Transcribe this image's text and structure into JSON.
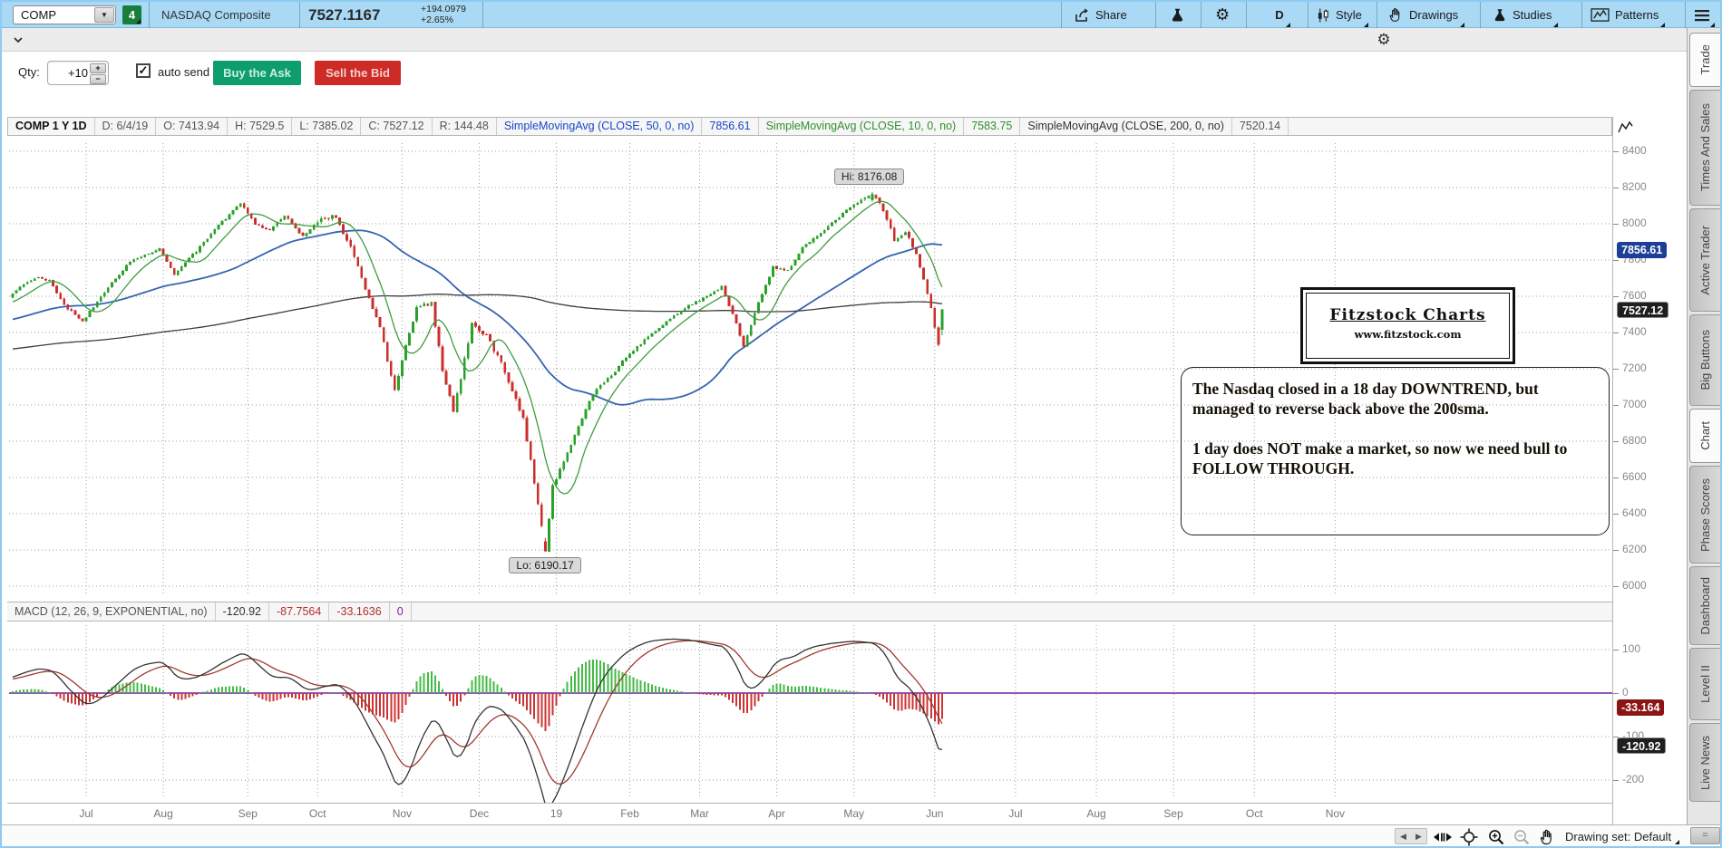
{
  "top_bar": {
    "symbol": "COMP",
    "watchlist_badge": "4",
    "symbol_description": "NASDAQ Composite",
    "last_price": "7527.1167",
    "change": "+194.0979",
    "change_percent": "+2.65%",
    "share_label": "Share",
    "timeframe_label": "D",
    "style_label": "Style",
    "drawings_label": "Drawings",
    "studies_label": "Studies",
    "patterns_label": "Patterns"
  },
  "order_bar": {
    "qty_label": "Qty:",
    "qty_value": "+10",
    "auto_send_label": "auto send",
    "buy_label": "Buy the Ask",
    "sell_label": "Sell the Bid",
    "check_glyph": "✓"
  },
  "chart_header": {
    "title": "COMP 1 Y 1D",
    "date": "D: 6/4/19",
    "open": "O: 7413.94",
    "high": "H: 7529.5",
    "low": "L: 7385.02",
    "close": "C: 7527.12",
    "range": "R: 144.48",
    "sma50_label": "SimpleMovingAvg (CLOSE, 50, 0, no)",
    "sma50_value": "7856.61",
    "sma10_label": "SimpleMovingAvg (CLOSE, 10, 0, no)",
    "sma10_value": "7583.75",
    "sma200_label": "SimpleMovingAvg (CLOSE, 200, 0, no)",
    "sma200_value": "7520.14"
  },
  "macd_header": {
    "label": "MACD (12, 26, 9, EXPONENTIAL, no)",
    "value": "-120.92",
    "avg": "-87.7564",
    "diff": "-33.1636",
    "zero": "0"
  },
  "annotations": {
    "hi_label": "Hi: 8176.08",
    "lo_label": "Lo: 6190.17",
    "logo_title": "Fitzstock Charts",
    "logo_url": "www.fitzstock.com",
    "note_para1": "The Nasdaq closed in a 18 day DOWNTREND, but managed to reverse back above the 200sma.",
    "note_para2": "1 day does NOT make a market, so now we need bull to FOLLOW THROUGH."
  },
  "price_axis": {
    "labels": [
      8400,
      8200,
      8000,
      7800,
      7600,
      7400,
      7200,
      7000,
      6800,
      6600,
      6400,
      6200,
      6000
    ],
    "bubble_sma50": "7856.61",
    "bubble_last": "7527.12"
  },
  "macd_axis": {
    "labels": [
      100,
      0,
      -100,
      -200
    ],
    "bubble_diff": "-33.164",
    "bubble_value": "-120.92"
  },
  "x_axis": {
    "ticks": [
      {
        "bar": 20,
        "label": "Jul"
      },
      {
        "bar": 41,
        "label": "Aug"
      },
      {
        "bar": 64,
        "label": "Sep"
      },
      {
        "bar": 83,
        "label": "Oct"
      },
      {
        "bar": 106,
        "label": "Nov"
      },
      {
        "bar": 127,
        "label": "Dec"
      },
      {
        "bar": 148,
        "label": "19"
      },
      {
        "bar": 168,
        "label": "Feb"
      },
      {
        "bar": 187,
        "label": "Mar"
      },
      {
        "bar": 208,
        "label": "Apr"
      },
      {
        "bar": 229,
        "label": "May"
      },
      {
        "bar": 251,
        "label": "Jun"
      },
      {
        "bar": 273,
        "label": "Jul"
      },
      {
        "bar": 295,
        "label": "Aug"
      },
      {
        "bar": 316,
        "label": "Sep"
      },
      {
        "bar": 338,
        "label": "Oct"
      },
      {
        "bar": 360,
        "label": "Nov"
      }
    ]
  },
  "sidebar": {
    "tabs": [
      {
        "label": "Trade",
        "active": true
      },
      {
        "label": "Times And Sales",
        "active": false
      },
      {
        "label": "Active Trader",
        "active": false
      },
      {
        "label": "Big Buttons",
        "active": false
      },
      {
        "label": "Chart",
        "active": true
      },
      {
        "label": "Phase Scores",
        "active": false
      },
      {
        "label": "Dashboard",
        "active": false
      },
      {
        "label": "Level II",
        "active": false
      },
      {
        "label": "Live News",
        "active": false
      }
    ]
  },
  "bottom_bar": {
    "drawing_set_label": "Drawing set: Default"
  },
  "colors": {
    "candle_up": "#2aa22a",
    "candle_down": "#c9302c",
    "sma10": "#3f9c3f",
    "sma50": "#3465b0",
    "sma200": "#3c3c3c",
    "macd_value_line": "#333333",
    "macd_avg_line": "#a0392e",
    "hist_pos": "#44bb44",
    "hist_neg": "#cc3333",
    "zero_line": "#6b21a8",
    "bubble_blue": "#1d3f96",
    "bubble_dark": "#1f1f1f",
    "bubble_red": "#8b1414",
    "grid": "#9e9e9e"
  },
  "chart_data": {
    "type": "candlestick",
    "symbol": "COMP",
    "timeframe": "1 Y 1D",
    "y_axis_range": [
      6000,
      8400
    ],
    "y_axis_step": 200,
    "macd_axis_range": [
      -250,
      140
    ],
    "last_date": "6/4/19",
    "last_candle": {
      "o": 7413.94,
      "h": 7529.5,
      "l": 7385.02,
      "c": 7527.12
    },
    "extremes": {
      "hi_bar": 234,
      "hi_value": 8176.08,
      "lo_bar": 145,
      "lo_value": 6190.17
    },
    "first_bar": -200,
    "last_bar": 253,
    "pre_path": [
      [
        -200,
        7150
      ],
      [
        -150,
        7300
      ],
      [
        -110,
        7180
      ],
      [
        -60,
        7360
      ],
      [
        -20,
        7470
      ],
      [
        -1,
        7590
      ]
    ],
    "price_path": [
      [
        0,
        7620
      ],
      [
        6,
        7700
      ],
      [
        10,
        7690
      ],
      [
        14,
        7550
      ],
      [
        19,
        7460
      ],
      [
        26,
        7650
      ],
      [
        32,
        7790
      ],
      [
        40,
        7860
      ],
      [
        44,
        7720
      ],
      [
        50,
        7850
      ],
      [
        56,
        7990
      ],
      [
        62,
        8110
      ],
      [
        66,
        8000
      ],
      [
        70,
        7960
      ],
      [
        74,
        8050
      ],
      [
        79,
        7930
      ],
      [
        84,
        8030
      ],
      [
        88,
        8040
      ],
      [
        92,
        7870
      ],
      [
        96,
        7650
      ],
      [
        100,
        7420
      ],
      [
        104,
        7080
      ],
      [
        107,
        7320
      ],
      [
        110,
        7540
      ],
      [
        114,
        7560
      ],
      [
        117,
        7200
      ],
      [
        120,
        6960
      ],
      [
        125,
        7440
      ],
      [
        129,
        7380
      ],
      [
        133,
        7230
      ],
      [
        136,
        7080
      ],
      [
        139,
        6920
      ],
      [
        141,
        6700
      ],
      [
        143,
        6450
      ],
      [
        145,
        6190
      ],
      [
        147,
        6560
      ],
      [
        150,
        6680
      ],
      [
        154,
        6890
      ],
      [
        158,
        7060
      ],
      [
        163,
        7170
      ],
      [
        168,
        7280
      ],
      [
        173,
        7380
      ],
      [
        178,
        7460
      ],
      [
        184,
        7550
      ],
      [
        189,
        7600
      ],
      [
        193,
        7650
      ],
      [
        196,
        7500
      ],
      [
        199,
        7330
      ],
      [
        203,
        7560
      ],
      [
        207,
        7760
      ],
      [
        211,
        7740
      ],
      [
        215,
        7870
      ],
      [
        220,
        7950
      ],
      [
        225,
        8040
      ],
      [
        230,
        8120
      ],
      [
        234,
        8164
      ],
      [
        237,
        8080
      ],
      [
        240,
        7910
      ],
      [
        243,
        7960
      ],
      [
        246,
        7830
      ],
      [
        249,
        7620
      ],
      [
        251,
        7430
      ],
      [
        252,
        7340
      ],
      [
        253,
        7527
      ]
    ],
    "studies": [
      {
        "name": "SimpleMovingAvg",
        "input": "CLOSE",
        "length": 50,
        "displayed_value": 7856.61
      },
      {
        "name": "SimpleMovingAvg",
        "input": "CLOSE",
        "length": 10,
        "displayed_value": 7583.75
      },
      {
        "name": "SimpleMovingAvg",
        "input": "CLOSE",
        "length": 200,
        "displayed_value": 7520.14
      },
      {
        "name": "MACD",
        "fast": 12,
        "slow": 26,
        "signal": 9,
        "average_type": "EXPONENTIAL",
        "displayed_value": -120.92,
        "displayed_avg": -87.7564,
        "displayed_diff": -33.1636
      }
    ]
  }
}
